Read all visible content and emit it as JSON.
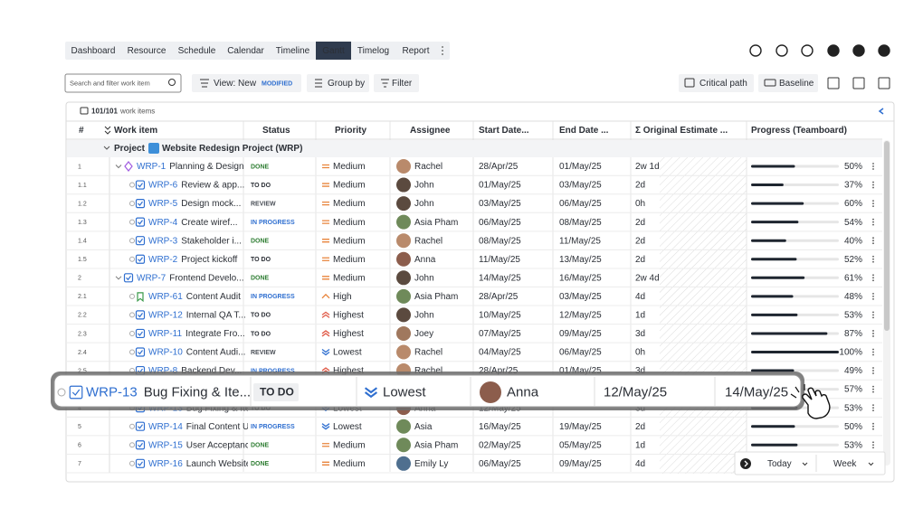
{
  "nav": {
    "tabs": [
      "Dashboard",
      "Resource",
      "Schedule",
      "Calendar",
      "Timeline",
      "Gantt",
      "Timelog",
      "Report"
    ],
    "active": 5
  },
  "toolbar": {
    "search_placeholder": "Search and filter work item",
    "view": "View: New",
    "view_badge": "MODIFIED",
    "group_by": "Group by",
    "filter": "Filter",
    "critical_path": "Critical path",
    "baseline": "Baseline"
  },
  "table": {
    "count": "101/101",
    "count_label": "work items",
    "columns": [
      "#",
      "Work item",
      "Status",
      "Priority",
      "Assignee",
      "Start Date...",
      "End Date ...",
      "Σ Original Estimate ...",
      "Progress (Teamboard)"
    ],
    "group": {
      "label": "Project",
      "name": "Website Redesign Project (WRP)"
    },
    "statuses": {
      "DONE": {
        "color": "#2e7d32",
        "bg": "#eaf5ea"
      },
      "TO DO": {
        "color": "#2b2f36",
        "bg": "#eeeff1"
      },
      "REVIEW": {
        "color": "#4a4f57",
        "bg": "#f1f1f1"
      },
      "IN PROGRESS": {
        "color": "#2f6fd0",
        "bg": "#e8f0fc"
      }
    },
    "priorities": {
      "Medium": {
        "icon": "bars",
        "color": "#e8833a"
      },
      "High": {
        "icon": "up",
        "color": "#e8833a"
      },
      "Highest": {
        "icon": "upup",
        "color": "#e05a47"
      },
      "Lowest": {
        "icon": "downdown",
        "color": "#2f6fd0"
      }
    },
    "people": {
      "Rachel": "#b98a6b",
      "John": "#5b4a3f",
      "Asia Pham": "#6f8a5a",
      "Anna": "#8c5d4c",
      "Joey": "#a0785e",
      "Asia": "#6f8a5a",
      "Emily Ly": "#4f6f8f"
    },
    "rows": [
      {
        "num": "1",
        "level": 0,
        "icon": "epic",
        "key": "WRP-1",
        "title": "Planning & Design",
        "status": "DONE",
        "priority": "Medium",
        "assignee": "Rachel",
        "start": "28/Apr/25",
        "end": "01/May/25",
        "estimate": "2w 1d",
        "progress": 50,
        "progress_label": "50%"
      },
      {
        "num": "1.1",
        "level": 1,
        "icon": "task",
        "key": "WRP-6",
        "title": "Review & app...",
        "status": "TO DO",
        "priority": "Medium",
        "assignee": "John",
        "start": "01/May/25",
        "end": "03/May/25",
        "estimate": "2d",
        "progress": 37,
        "progress_label": "37%"
      },
      {
        "num": "1.2",
        "level": 1,
        "icon": "task",
        "key": "WRP-5",
        "title": "Design mock...",
        "status": "REVIEW",
        "priority": "Medium",
        "assignee": "John",
        "start": "03/May/25",
        "end": "06/May/25",
        "estimate": "0h",
        "progress": 60,
        "progress_label": "60%"
      },
      {
        "num": "1.3",
        "level": 1,
        "icon": "task",
        "key": "WRP-4",
        "title": "Create wiref...",
        "status": "IN PROGRESS",
        "priority": "Medium",
        "assignee": "Asia Pham",
        "start": "06/May/25",
        "end": "08/May/25",
        "estimate": "2d",
        "progress": 54,
        "progress_label": "54%"
      },
      {
        "num": "1.4",
        "level": 1,
        "icon": "task",
        "key": "WRP-3",
        "title": "Stakeholder i...",
        "status": "DONE",
        "priority": "Medium",
        "assignee": "Rachel",
        "start": "08/May/25",
        "end": "11/May/25",
        "estimate": "2d",
        "progress": 40,
        "progress_label": "40%"
      },
      {
        "num": "1.5",
        "level": 1,
        "icon": "task",
        "key": "WRP-2",
        "title": "Project kickoff",
        "status": "TO DO",
        "priority": "Medium",
        "assignee": "Anna",
        "start": "11/May/25",
        "end": "13/May/25",
        "estimate": "2d",
        "progress": 52,
        "progress_label": "52%"
      },
      {
        "num": "2",
        "level": 0,
        "icon": "task",
        "key": "WRP-7",
        "title": "Frontend Develo...",
        "status": "DONE",
        "priority": "Medium",
        "assignee": "John",
        "start": "14/May/25",
        "end": "16/May/25",
        "estimate": "2w 4d",
        "progress": 61,
        "progress_label": "61%"
      },
      {
        "num": "2.1",
        "level": 1,
        "icon": "story",
        "key": "WRP-61",
        "title": "Content Audit",
        "status": "IN PROGRESS",
        "priority": "High",
        "assignee": "Asia Pham",
        "start": "28/Apr/25",
        "end": "03/May/25",
        "estimate": "4d",
        "progress": 48,
        "progress_label": "48%"
      },
      {
        "num": "2.2",
        "level": 1,
        "icon": "task",
        "key": "WRP-12",
        "title": "Internal QA T...",
        "status": "TO DO",
        "priority": "Highest",
        "assignee": "John",
        "start": "10/May/25",
        "end": "12/May/25",
        "estimate": "1d",
        "progress": 53,
        "progress_label": "53%"
      },
      {
        "num": "2.3",
        "level": 1,
        "icon": "task",
        "key": "WRP-11",
        "title": "Integrate Fro...",
        "status": "TO DO",
        "priority": "Highest",
        "assignee": "Joey",
        "start": "07/May/25",
        "end": "09/May/25",
        "estimate": "3d",
        "progress": 87,
        "progress_label": "87%"
      },
      {
        "num": "2.4",
        "level": 1,
        "icon": "task",
        "key": "WRP-10",
        "title": "Content Audi...",
        "status": "REVIEW",
        "priority": "Lowest",
        "assignee": "Rachel",
        "start": "04/May/25",
        "end": "06/May/25",
        "estimate": "0h",
        "progress": 100,
        "progress_label": "100%"
      },
      {
        "num": "2.5",
        "level": 1,
        "icon": "task",
        "key": "WRP-8",
        "title": "Backend Dev...",
        "status": "IN PROGRESS",
        "priority": "Highest",
        "assignee": "Rachel",
        "start": "28/Apr/25",
        "end": "01/May/25",
        "estimate": "3d",
        "progress": 49,
        "progress_label": "49%"
      },
      {
        "progress": 57,
        "progress_label": "57%"
      },
      {
        "num": "4",
        "level": 1,
        "icon": "task",
        "key": "WRP-13",
        "title": "Bug Fixing & Ite...",
        "status": "TO DO",
        "priority": "Lowest",
        "assignee": "Anna",
        "start": "12/May/25",
        "estimate": "3d",
        "progress": 53,
        "progress_label": "53%"
      },
      {
        "num": "5",
        "level": 1,
        "icon": "task",
        "key": "WRP-14",
        "title": "Final Content U...",
        "status": "IN PROGRESS",
        "priority": "Lowest",
        "assignee": "Asia",
        "start": "16/May/25",
        "end": "19/May/25",
        "estimate": "2d",
        "progress": 50,
        "progress_label": "50%"
      },
      {
        "num": "6",
        "level": 1,
        "icon": "task",
        "key": "WRP-15",
        "title": "User Acceptanc...",
        "status": "DONE",
        "priority": "Medium",
        "assignee": "Asia Pham",
        "start": "02/May/25",
        "end": "05/May/25",
        "estimate": "1d",
        "progress": 53,
        "progress_label": "53%"
      },
      {
        "num": "7",
        "level": 1,
        "icon": "task",
        "key": "WRP-16",
        "title": "Launch Website",
        "status": "DONE",
        "priority": "Medium",
        "assignee": "Emily Ly",
        "start": "06/May/25",
        "end": "09/May/25",
        "estimate": "4d"
      }
    ]
  },
  "dragged": {
    "key": "WRP-13",
    "title": "Bug Fixing & Ite...",
    "status": "TO DO",
    "priority": "Lowest",
    "assignee": "Anna",
    "start": "12/May/25",
    "end": "14/May/25"
  },
  "footer": {
    "today": "Today",
    "week": "Week"
  }
}
